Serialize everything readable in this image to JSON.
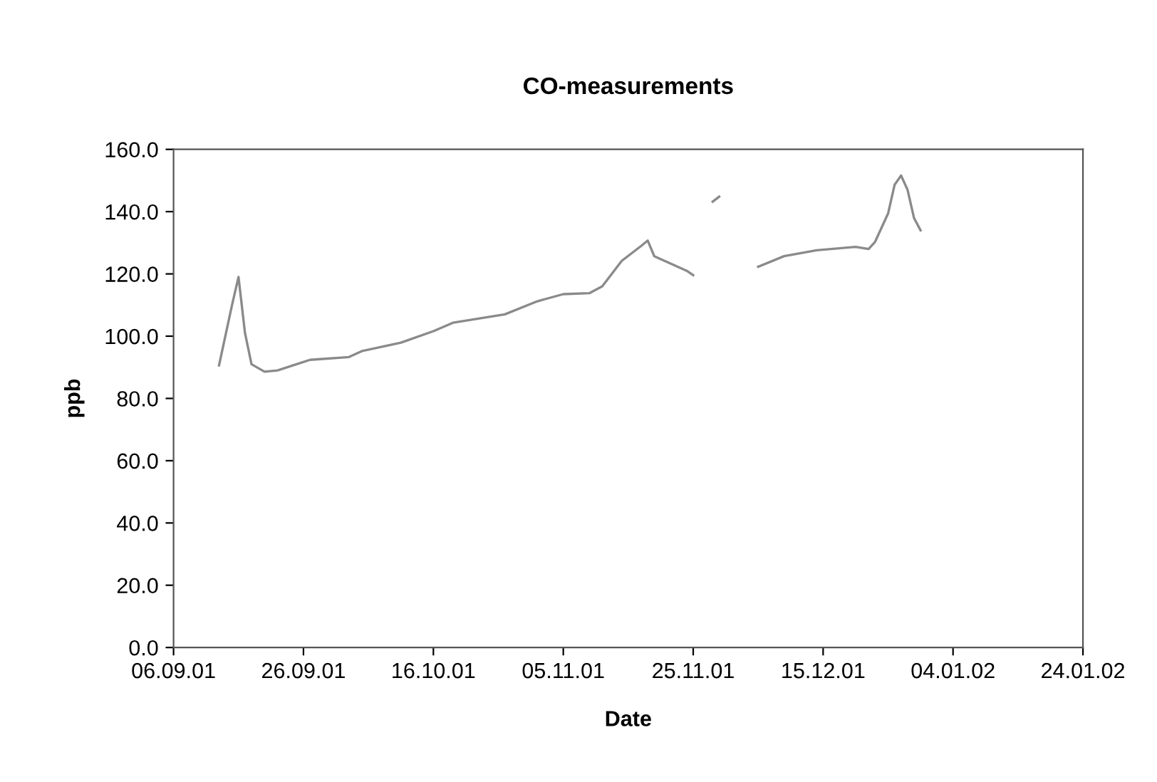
{
  "chart_data": {
    "type": "line",
    "title": "CO-measurements",
    "xlabel": "Date",
    "ylabel": "ppb",
    "x": [
      "2001-09-13",
      "2001-09-15",
      "2001-09-16",
      "2001-09-17",
      "2001-09-18",
      "2001-09-20",
      "2001-09-22",
      "2001-09-27",
      "2001-10-03",
      "2001-10-05",
      "2001-10-11",
      "2001-10-16",
      "2001-10-19",
      "2001-10-27",
      "2001-11-01",
      "2001-11-05",
      "2001-11-09",
      "2001-11-11",
      "2001-11-14",
      "2001-11-17",
      "2001-11-18",
      "2001-11-19",
      "2001-11-24",
      "2001-11-25",
      "2001-11-26",
      "2001-11-28",
      "2001-11-29",
      "2001-11-30",
      "2001-12-05",
      "2001-12-09",
      "2001-12-14",
      "2001-12-20",
      "2001-12-22",
      "2001-12-23",
      "2001-12-25",
      "2001-12-26",
      "2001-12-27",
      "2001-12-28",
      "2001-12-29",
      "2001-12-30"
    ],
    "series": [
      {
        "color": "#8a8a8a",
        "values": [
          90.6,
          110,
          119,
          101,
          91,
          88.6,
          89,
          92.4,
          93.3,
          95.2,
          97.9,
          101.6,
          104.3,
          107,
          111.2,
          113.5,
          113.8,
          116,
          124.2,
          129,
          130.7,
          125.7,
          121,
          119.6,
          null,
          143.2,
          144.8,
          null,
          122.3,
          125.7,
          127.6,
          128.7,
          128,
          130.3,
          139.4,
          148.6,
          151.6,
          147,
          137.9,
          134
        ]
      }
    ],
    "xlim": [
      "2001-09-06",
      "2002-01-24"
    ],
    "xticks": [
      {
        "value": "2001-09-06",
        "label": "06.09.01"
      },
      {
        "value": "2001-09-26",
        "label": "26.09.01"
      },
      {
        "value": "2001-10-16",
        "label": "16.10.01"
      },
      {
        "value": "2001-11-05",
        "label": "05.11.01"
      },
      {
        "value": "2001-11-25",
        "label": "25.11.01"
      },
      {
        "value": "2001-12-15",
        "label": "15.12.01"
      },
      {
        "value": "2002-01-04",
        "label": "04.01.02"
      },
      {
        "value": "2002-01-24",
        "label": "24.01.02"
      }
    ],
    "ylim": [
      0,
      160
    ],
    "yticks": [
      {
        "value": 0,
        "label": "0.0"
      },
      {
        "value": 20,
        "label": "20.0"
      },
      {
        "value": 40,
        "label": "40.0"
      },
      {
        "value": 60,
        "label": "60.0"
      },
      {
        "value": 80,
        "label": "80.0"
      },
      {
        "value": 100,
        "label": "100.0"
      },
      {
        "value": 120,
        "label": "120.0"
      },
      {
        "value": 140,
        "label": "140.0"
      },
      {
        "value": 160,
        "label": "160.0"
      }
    ],
    "grid": false,
    "marker": "none",
    "line_style": "solid"
  }
}
